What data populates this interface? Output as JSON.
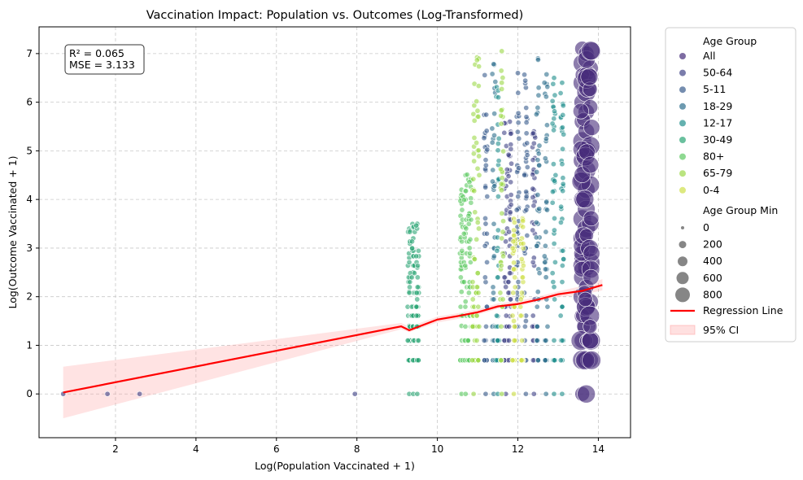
{
  "chart_data": {
    "type": "scatter",
    "title": "Vaccination Impact: Population vs. Outcomes (Log-Transformed)",
    "xlabel": "Log(Population Vaccinated + 1)",
    "ylabel": "Log(Outcome Vaccinated + 1)",
    "xlim": [
      0.1,
      14.8
    ],
    "ylim": [
      -0.9,
      7.55
    ],
    "xticks": [
      2,
      4,
      6,
      8,
      10,
      12,
      14
    ],
    "yticks": [
      0,
      1,
      2,
      3,
      4,
      5,
      6,
      7
    ],
    "grid": true,
    "stats_box": [
      "R² = 0.065",
      "MSE = 3.133"
    ],
    "legend": {
      "placement": "outside-right",
      "hue_title": "Age Group",
      "size_title": "Age Group Min",
      "size_labels": [
        "0",
        "200",
        "400",
        "600",
        "800"
      ],
      "regression_label": "Regression Line",
      "ci_label": "95% CI"
    },
    "series": [
      {
        "name": "All",
        "color": "#472d7b",
        "size": 0,
        "x_columns": [
          13.6,
          13.7,
          13.8
        ],
        "y_max": 7.1,
        "points": [
          [
            13.6,
            0
          ],
          [
            13.6,
            0.7
          ],
          [
            13.6,
            1.1
          ],
          [
            13.6,
            1.6
          ],
          [
            13.6,
            2.0
          ],
          [
            13.6,
            2.4
          ],
          [
            13.6,
            2.8
          ],
          [
            13.6,
            3.2
          ],
          [
            13.6,
            3.6
          ],
          [
            13.6,
            4.0
          ],
          [
            13.6,
            4.4
          ],
          [
            13.6,
            4.8
          ],
          [
            13.6,
            5.2
          ],
          [
            13.6,
            5.6
          ],
          [
            13.6,
            6.0
          ],
          [
            13.6,
            6.4
          ],
          [
            13.6,
            6.8
          ],
          [
            13.6,
            7.1
          ],
          [
            13.7,
            0
          ],
          [
            13.7,
            0.7
          ],
          [
            13.7,
            1.4
          ],
          [
            13.7,
            1.8
          ],
          [
            13.7,
            2.2
          ],
          [
            13.7,
            2.6
          ],
          [
            13.7,
            3.0
          ],
          [
            13.7,
            3.4
          ],
          [
            13.7,
            3.8
          ],
          [
            13.7,
            4.2
          ],
          [
            13.7,
            4.6
          ],
          [
            13.7,
            5.0
          ],
          [
            13.7,
            5.4
          ],
          [
            13.7,
            5.8
          ],
          [
            13.7,
            6.2
          ],
          [
            13.7,
            6.6
          ],
          [
            13.7,
            7.0
          ],
          [
            13.8,
            0.7
          ],
          [
            13.8,
            1.1
          ],
          [
            13.8,
            1.9
          ],
          [
            13.8,
            2.7
          ],
          [
            13.8,
            3.5
          ],
          [
            13.8,
            4.3
          ],
          [
            13.8,
            5.1
          ],
          [
            13.8,
            5.9
          ],
          [
            13.8,
            6.7
          ]
        ]
      },
      {
        "name": "50-64",
        "color": "#414487",
        "size": 0,
        "x_columns": [
          11.7,
          11.8,
          12.4
        ],
        "y_max": 5.6,
        "points": [
          [
            11.7,
            0
          ],
          [
            11.7,
            1.1
          ],
          [
            11.7,
            2.2
          ],
          [
            11.7,
            3.3
          ],
          [
            11.7,
            4.4
          ],
          [
            11.8,
            0.7
          ],
          [
            11.8,
            1.6
          ],
          [
            11.8,
            2.6
          ],
          [
            11.8,
            3.6
          ],
          [
            11.8,
            4.6
          ],
          [
            11.8,
            5.6
          ],
          [
            12.4,
            0
          ],
          [
            12.4,
            1.4
          ],
          [
            12.4,
            2.8
          ],
          [
            12.4,
            4.2
          ],
          [
            12.4,
            5.4
          ],
          [
            0.7,
            0
          ],
          [
            1.8,
            0
          ],
          [
            2.6,
            0
          ],
          [
            7.95,
            0
          ]
        ]
      },
      {
        "name": "5-11",
        "color": "#3b5d8d",
        "size": 0,
        "x_columns": [
          11.2,
          12.0,
          12.2
        ],
        "y_max": 6.6,
        "points": [
          [
            11.2,
            0
          ],
          [
            11.2,
            1.1
          ],
          [
            11.2,
            2.3
          ],
          [
            11.2,
            3.5
          ],
          [
            11.2,
            4.6
          ],
          [
            12.0,
            0.7
          ],
          [
            12.0,
            2.0
          ],
          [
            12.0,
            3.3
          ],
          [
            12.0,
            4.6
          ],
          [
            12.0,
            6.6
          ],
          [
            12.2,
            0
          ],
          [
            12.2,
            1.5
          ],
          [
            12.2,
            3.0
          ],
          [
            12.2,
            4.5
          ],
          [
            12.2,
            6.3
          ]
        ]
      },
      {
        "name": "18-29",
        "color": "#2f6f8e",
        "size": 0,
        "x_columns": [
          11.4,
          12.5,
          12.7
        ],
        "y_max": 6.9,
        "points": [
          [
            11.4,
            0
          ],
          [
            11.4,
            1.4
          ],
          [
            11.4,
            2.8
          ],
          [
            11.4,
            4.2
          ],
          [
            12.5,
            0.7
          ],
          [
            12.5,
            2.1
          ],
          [
            12.5,
            3.5
          ],
          [
            12.5,
            5.0
          ],
          [
            12.5,
            6.9
          ],
          [
            12.7,
            0
          ],
          [
            12.7,
            1.1
          ],
          [
            12.7,
            2.4
          ],
          [
            12.7,
            3.8
          ],
          [
            12.7,
            5.2
          ]
        ]
      },
      {
        "name": "12-17",
        "color": "#22908d",
        "size": 0,
        "x_columns": [
          11.5,
          12.9,
          13.1
        ],
        "y_max": 6.5,
        "points": [
          [
            11.5,
            0
          ],
          [
            11.5,
            1.6
          ],
          [
            11.5,
            3.0
          ],
          [
            12.9,
            0
          ],
          [
            12.9,
            1.1
          ],
          [
            12.9,
            2.2
          ],
          [
            12.9,
            3.3
          ],
          [
            12.9,
            4.4
          ],
          [
            12.9,
            5.5
          ],
          [
            12.9,
            6.5
          ],
          [
            13.1,
            0
          ],
          [
            13.1,
            1.8
          ],
          [
            13.1,
            3.6
          ],
          [
            13.1,
            5.4
          ],
          [
            13.1,
            6.4
          ]
        ]
      },
      {
        "name": "30-49",
        "color": "#2ba575",
        "size": 0,
        "x_columns": [
          9.3,
          9.4,
          9.5
        ],
        "y_max": 3.5,
        "points": [
          [
            9.3,
            0
          ],
          [
            9.3,
            0.7
          ],
          [
            9.3,
            1.4
          ],
          [
            9.3,
            2.1
          ],
          [
            9.3,
            2.8
          ],
          [
            9.3,
            3.4
          ],
          [
            9.4,
            0
          ],
          [
            9.4,
            1.1
          ],
          [
            9.4,
            1.8
          ],
          [
            9.4,
            2.5
          ],
          [
            9.4,
            3.2
          ],
          [
            9.5,
            0
          ],
          [
            9.5,
            0.7
          ],
          [
            9.5,
            1.6
          ],
          [
            9.5,
            2.6
          ],
          [
            9.5,
            3.5
          ]
        ]
      },
      {
        "name": "80+",
        "color": "#5ec962",
        "size": 0,
        "x_columns": [
          10.6,
          10.7,
          10.8
        ],
        "y_max": 4.5,
        "points": [
          [
            10.6,
            0
          ],
          [
            10.6,
            0.7
          ],
          [
            10.6,
            1.4
          ],
          [
            10.6,
            2.1
          ],
          [
            10.6,
            2.8
          ],
          [
            10.6,
            3.5
          ],
          [
            10.6,
            4.2
          ],
          [
            10.7,
            0
          ],
          [
            10.7,
            1.1
          ],
          [
            10.7,
            1.9
          ],
          [
            10.7,
            2.6
          ],
          [
            10.7,
            3.3
          ],
          [
            10.7,
            4.0
          ],
          [
            10.7,
            4.5
          ],
          [
            10.8,
            0.7
          ],
          [
            10.8,
            1.6
          ],
          [
            10.8,
            2.3
          ],
          [
            10.8,
            3.0
          ],
          [
            10.8,
            3.7
          ],
          [
            10.8,
            4.4
          ]
        ]
      },
      {
        "name": "65-79",
        "color": "#9cd84a",
        "size": 0,
        "x_columns": [
          10.9,
          11.0,
          11.6
        ],
        "y_max": 7.05,
        "points": [
          [
            10.9,
            0
          ],
          [
            10.9,
            1.4
          ],
          [
            10.9,
            2.8
          ],
          [
            10.9,
            4.2
          ],
          [
            11.0,
            0.7
          ],
          [
            11.0,
            2.2
          ],
          [
            11.0,
            3.6
          ],
          [
            11.0,
            5.0
          ],
          [
            11.6,
            0
          ],
          [
            11.6,
            1.8
          ],
          [
            11.6,
            3.2
          ],
          [
            11.6,
            4.6
          ],
          [
            11.6,
            6.4
          ],
          [
            11.6,
            7.05
          ]
        ]
      },
      {
        "name": "0-4",
        "color": "#cfe04a",
        "size": 0,
        "x_columns": [
          11.9,
          12.1
        ],
        "y_max": 3.6,
        "points": [
          [
            11.9,
            0
          ],
          [
            11.9,
            1.5
          ],
          [
            11.9,
            2.7
          ],
          [
            11.9,
            3.6
          ],
          [
            12.1,
            0.7
          ],
          [
            12.1,
            2.0
          ],
          [
            12.1,
            3.2
          ]
        ]
      }
    ],
    "regression": {
      "color": "#ff0000",
      "x": [
        0.7,
        9.1,
        9.3,
        10.0,
        10.5,
        11.0,
        11.5,
        12.0,
        12.5,
        13.0,
        13.6,
        14.1
      ],
      "y": [
        0.03,
        1.39,
        1.31,
        1.53,
        1.6,
        1.68,
        1.8,
        1.85,
        1.94,
        2.05,
        2.12,
        2.24
      ],
      "ci_low": [
        -0.5,
        1.33,
        1.27,
        1.47,
        1.54,
        1.63,
        1.75,
        1.81,
        1.89,
        1.99,
        2.04,
        2.13
      ],
      "ci_high": [
        0.56,
        1.46,
        1.38,
        1.59,
        1.66,
        1.74,
        1.86,
        1.91,
        2.0,
        2.11,
        2.22,
        2.36
      ]
    }
  }
}
